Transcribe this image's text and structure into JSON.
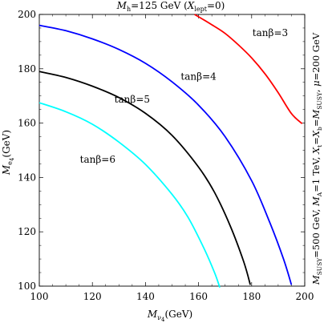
{
  "chart_data": {
    "type": "line",
    "title": "M_h=125 GeV (X_lept=0)",
    "xlabel": "M_νΔ(GeV)",
    "ylabel": "M_eΔ(GeV)",
    "side_label": "M_SUSY=500 GeV, M_A=1 TeV, X_t=X_b=M_SUSY, μ=200 GeV",
    "xlim": [
      100,
      200
    ],
    "ylim": [
      100,
      200
    ],
    "x_ticks": [
      100,
      120,
      140,
      160,
      180,
      200
    ],
    "y_ticks": [
      100,
      120,
      140,
      160,
      180,
      200
    ],
    "series": [
      {
        "name": "tanβ=3",
        "color": "#ff0000",
        "points": [
          [
            158.5,
            200
          ],
          [
            165,
            196.2
          ],
          [
            170,
            193
          ],
          [
            175,
            188.8
          ],
          [
            180,
            184
          ],
          [
            185,
            178.2
          ],
          [
            190,
            171.2
          ],
          [
            195,
            163.5
          ],
          [
            199,
            159.8
          ]
        ]
      },
      {
        "name": "tanβ=4",
        "color": "#0000ff",
        "points": [
          [
            100,
            196
          ],
          [
            110,
            194
          ],
          [
            120,
            191
          ],
          [
            130,
            187.1
          ],
          [
            140,
            182
          ],
          [
            150,
            175.2
          ],
          [
            160,
            166.6
          ],
          [
            170,
            155
          ],
          [
            180,
            138.8
          ],
          [
            187,
            123
          ],
          [
            192,
            110
          ],
          [
            195,
            100.5
          ]
        ]
      },
      {
        "name": "tanβ=5",
        "color": "#000000",
        "points": [
          [
            100,
            179
          ],
          [
            110,
            176.8
          ],
          [
            120,
            173.6
          ],
          [
            130,
            169.4
          ],
          [
            140,
            163.6
          ],
          [
            150,
            155.5
          ],
          [
            160,
            143.8
          ],
          [
            166,
            134.5
          ],
          [
            172,
            122
          ],
          [
            177,
            109
          ],
          [
            179.5,
            100.5
          ]
        ]
      },
      {
        "name": "tanβ=6",
        "color": "#00ffff",
        "points": [
          [
            100,
            167.5
          ],
          [
            110,
            164.2
          ],
          [
            120,
            159.6
          ],
          [
            130,
            153
          ],
          [
            140,
            144.8
          ],
          [
            150,
            133.8
          ],
          [
            156,
            125.4
          ],
          [
            162,
            114
          ],
          [
            166,
            105
          ],
          [
            168,
            99.5
          ]
        ]
      }
    ],
    "annotations": [
      {
        "text": "tanβ=3",
        "series": "tanβ=3",
        "x": 187,
        "y": 192
      },
      {
        "text": "tanβ=4",
        "series": "tanβ=4",
        "x": 160,
        "y": 176
      },
      {
        "text": "tanβ=5",
        "series": "tanβ=5",
        "x": 135,
        "y": 167.5
      },
      {
        "text": "tanβ=6",
        "series": "tanβ=6",
        "x": 122,
        "y": 145.5
      }
    ]
  }
}
